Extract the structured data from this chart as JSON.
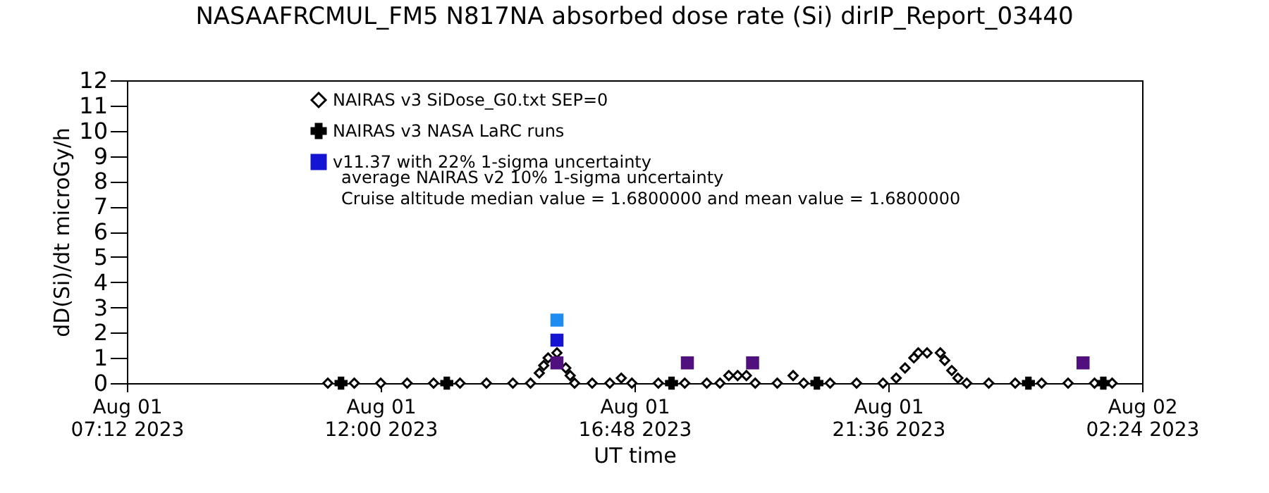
{
  "chart_data": {
    "type": "scatter",
    "title": "NASAAFRCMUL_FM5 N817NA absorbed dose rate (Si) dirIP_Report_03440",
    "xlabel": "UT time",
    "ylabel": "dD(Si)/dt microGy/h",
    "xlim": [
      "2023-08-01T07:12",
      "2023-08-02T02:24"
    ],
    "xticks": [
      {
        "value": "2023-08-01T07:12",
        "label": "Aug 01\n07:12 2023"
      },
      {
        "value": "2023-08-01T12:00",
        "label": "Aug 01\n12:00 2023"
      },
      {
        "value": "2023-08-01T16:48",
        "label": "Aug 01\n16:48 2023"
      },
      {
        "value": "2023-08-01T21:36",
        "label": "Aug 01\n21:36 2023"
      },
      {
        "value": "2023-08-02T02:24",
        "label": "Aug 02\n02:24 2023"
      }
    ],
    "ylim": [
      0,
      12
    ],
    "yticks": [
      0,
      1,
      2,
      3,
      4,
      5,
      6,
      7,
      8,
      9,
      10,
      11,
      12
    ],
    "grid": false,
    "legend": "top left",
    "annotations": [
      "average NAIRAS v2 10% 1-sigma uncertainty",
      "Cruise altitude median value = 1.6800000 and mean value = 1.6800000"
    ],
    "series": [
      {
        "name": "NAIRAS v3 SiDose_G0.txt SEP=0",
        "color": "#000000",
        "marker": "diamond",
        "x": [
          "2023-08-01T11:00",
          "2023-08-01T11:30",
          "2023-08-01T12:00",
          "2023-08-01T12:30",
          "2023-08-01T13:00",
          "2023-08-01T13:30",
          "2023-08-01T14:00",
          "2023-08-01T14:30",
          "2023-08-01T14:50",
          "2023-08-01T15:00",
          "2023-08-01T15:05",
          "2023-08-01T15:10",
          "2023-08-01T15:15",
          "2023-08-01T15:20",
          "2023-08-01T15:25",
          "2023-08-01T15:30",
          "2023-08-01T15:35",
          "2023-08-01T15:40",
          "2023-08-01T16:00",
          "2023-08-01T16:20",
          "2023-08-01T16:33",
          "2023-08-01T16:45",
          "2023-08-01T17:15",
          "2023-08-01T17:45",
          "2023-08-01T18:10",
          "2023-08-01T18:25",
          "2023-08-01T18:35",
          "2023-08-01T18:45",
          "2023-08-01T18:55",
          "2023-08-01T19:05",
          "2023-08-01T19:30",
          "2023-08-01T19:48",
          "2023-08-01T20:00",
          "2023-08-01T20:30",
          "2023-08-01T21:00",
          "2023-08-01T21:30",
          "2023-08-01T21:45",
          "2023-08-01T21:55",
          "2023-08-01T22:05",
          "2023-08-01T22:10",
          "2023-08-01T22:20",
          "2023-08-01T22:35",
          "2023-08-01T22:40",
          "2023-08-01T22:48",
          "2023-08-01T22:55",
          "2023-08-01T23:05",
          "2023-08-01T23:30",
          "2023-08-02T00:00",
          "2023-08-02T00:30",
          "2023-08-02T01:00",
          "2023-08-02T01:30",
          "2023-08-02T01:50"
        ],
        "values": [
          0,
          0,
          0,
          0,
          0,
          0,
          0,
          0,
          0,
          0.4,
          0.7,
          1.0,
          null,
          1.2,
          null,
          0.6,
          0.3,
          0,
          0,
          0,
          0.2,
          0,
          0,
          0,
          0,
          0,
          0.3,
          0.3,
          0.3,
          0,
          0,
          0.3,
          0,
          0,
          0,
          0,
          0.2,
          0.6,
          1.0,
          1.2,
          1.2,
          1.2,
          0.9,
          0.5,
          0.2,
          0,
          0,
          0,
          0,
          0,
          0,
          0
        ]
      },
      {
        "name": "NAIRAS v3 NASA LaRC runs",
        "color": "#000000",
        "marker": "cross",
        "x": [
          "2023-08-01T11:15",
          "2023-08-01T13:15",
          "2023-08-01T17:30",
          "2023-08-01T20:15",
          "2023-08-02T00:15",
          "2023-08-02T01:40"
        ],
        "values": [
          0,
          0,
          0,
          0,
          0,
          0
        ]
      },
      {
        "name": "v11.37 with 22% 1-sigma uncertainty",
        "color": "#1414d2",
        "marker": "square",
        "x": [
          "2023-08-01T15:20"
        ],
        "values": [
          1.7
        ]
      },
      {
        "color": "#50107e",
        "marker": "square",
        "x": [
          "2023-08-01T15:20",
          "2023-08-01T17:48",
          "2023-08-01T19:02",
          "2023-08-02T01:17"
        ],
        "values": [
          0.8,
          0.8,
          0.8,
          0.8
        ]
      },
      {
        "color": "#1e8cf0",
        "marker": "square",
        "x": [
          "2023-08-01T15:20"
        ],
        "values": [
          2.5
        ]
      }
    ]
  }
}
